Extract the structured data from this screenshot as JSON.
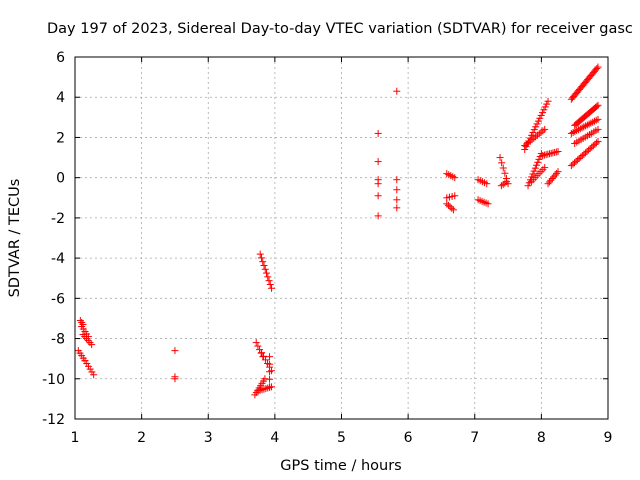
{
  "chart_data": {
    "type": "scatter",
    "title": "Day 197 of 2023, Sidereal Day-to-day VTEC variation (SDTVAR) for receiver gasc",
    "xlabel": "GPS time / hours",
    "ylabel": "SDTVAR / TECUs",
    "xlim": [
      1,
      9
    ],
    "ylim": [
      -12,
      6
    ],
    "xticks": [
      "1",
      "2",
      "3",
      "4",
      "5",
      "6",
      "7",
      "8",
      "9"
    ],
    "yticks": [
      "-12",
      "-10",
      "-8",
      "-6",
      "-4",
      "-2",
      "0",
      "2",
      "4",
      "6"
    ],
    "grid": true,
    "marker": "+",
    "color": "#ff0000",
    "segments": [
      {
        "x0": 1.08,
        "y0": -7.1,
        "x1": 1.12,
        "y1": -7.3,
        "n": 3
      },
      {
        "x0": 1.1,
        "y0": -7.4,
        "x1": 1.2,
        "y1": -7.9,
        "n": 5
      },
      {
        "x0": 1.12,
        "y0": -7.8,
        "x1": 1.25,
        "y1": -8.3,
        "n": 6
      },
      {
        "x0": 1.05,
        "y0": -8.6,
        "x1": 1.15,
        "y1": -9.1,
        "n": 5
      },
      {
        "x0": 1.15,
        "y0": -9.1,
        "x1": 1.28,
        "y1": -9.8,
        "n": 6
      },
      {
        "x0": 2.5,
        "y0": -8.6,
        "x1": 2.5,
        "y1": -8.6,
        "n": 1
      },
      {
        "x0": 2.5,
        "y0": -9.9,
        "x1": 2.5,
        "y1": -10.0,
        "n": 2
      },
      {
        "x0": 3.78,
        "y0": -3.8,
        "x1": 3.95,
        "y1": -5.5,
        "n": 10
      },
      {
        "x0": 3.72,
        "y0": -8.2,
        "x1": 3.82,
        "y1": -8.9,
        "n": 5
      },
      {
        "x0": 3.8,
        "y0": -8.7,
        "x1": 3.95,
        "y1": -9.6,
        "n": 6
      },
      {
        "x0": 3.92,
        "y0": -8.9,
        "x1": 3.92,
        "y1": -10.4,
        "n": 5
      },
      {
        "x0": 3.7,
        "y0": -10.8,
        "x1": 3.85,
        "y1": -10.0,
        "n": 8
      },
      {
        "x0": 3.75,
        "y0": -10.6,
        "x1": 3.95,
        "y1": -10.4,
        "n": 8
      },
      {
        "x0": 5.55,
        "y0": 2.2,
        "x1": 5.55,
        "y1": 2.2,
        "n": 1
      },
      {
        "x0": 5.55,
        "y0": 0.8,
        "x1": 5.55,
        "y1": 0.8,
        "n": 1
      },
      {
        "x0": 5.55,
        "y0": -0.1,
        "x1": 5.55,
        "y1": -0.3,
        "n": 2
      },
      {
        "x0": 5.55,
        "y0": -0.9,
        "x1": 5.55,
        "y1": -0.9,
        "n": 1
      },
      {
        "x0": 5.55,
        "y0": -1.9,
        "x1": 5.55,
        "y1": -1.9,
        "n": 1
      },
      {
        "x0": 5.83,
        "y0": 4.3,
        "x1": 5.83,
        "y1": 4.3,
        "n": 1
      },
      {
        "x0": 5.83,
        "y0": -0.1,
        "x1": 5.83,
        "y1": -0.1,
        "n": 1
      },
      {
        "x0": 5.83,
        "y0": -0.6,
        "x1": 5.83,
        "y1": -0.6,
        "n": 1
      },
      {
        "x0": 5.83,
        "y0": -1.1,
        "x1": 5.83,
        "y1": -1.1,
        "n": 1
      },
      {
        "x0": 5.83,
        "y0": -1.5,
        "x1": 5.83,
        "y1": -1.5,
        "n": 1
      },
      {
        "x0": 6.58,
        "y0": 0.2,
        "x1": 6.7,
        "y1": 0.0,
        "n": 5
      },
      {
        "x0": 6.58,
        "y0": -1.0,
        "x1": 6.7,
        "y1": -0.9,
        "n": 4
      },
      {
        "x0": 6.58,
        "y0": -1.3,
        "x1": 6.68,
        "y1": -1.6,
        "n": 5
      },
      {
        "x0": 7.05,
        "y0": -0.1,
        "x1": 7.18,
        "y1": -0.3,
        "n": 5
      },
      {
        "x0": 7.05,
        "y0": -1.1,
        "x1": 7.2,
        "y1": -1.3,
        "n": 6
      },
      {
        "x0": 7.38,
        "y0": 1.0,
        "x1": 7.5,
        "y1": -0.3,
        "n": 6
      },
      {
        "x0": 7.4,
        "y0": -0.4,
        "x1": 7.48,
        "y1": -0.2,
        "n": 4
      },
      {
        "x0": 7.75,
        "y0": 1.4,
        "x1": 8.1,
        "y1": 3.8,
        "n": 18
      },
      {
        "x0": 7.75,
        "y0": 1.6,
        "x1": 8.05,
        "y1": 2.4,
        "n": 12
      },
      {
        "x0": 7.8,
        "y0": -0.4,
        "x1": 8.0,
        "y1": 1.2,
        "n": 12
      },
      {
        "x0": 7.85,
        "y0": -0.2,
        "x1": 8.05,
        "y1": 0.5,
        "n": 8
      },
      {
        "x0": 8.02,
        "y0": 1.1,
        "x1": 8.25,
        "y1": 1.3,
        "n": 10
      },
      {
        "x0": 8.1,
        "y0": -0.3,
        "x1": 8.25,
        "y1": 0.3,
        "n": 8
      },
      {
        "x0": 8.45,
        "y0": 3.9,
        "x1": 8.85,
        "y1": 5.5,
        "n": 24
      },
      {
        "x0": 8.5,
        "y0": 2.6,
        "x1": 8.85,
        "y1": 3.6,
        "n": 20
      },
      {
        "x0": 8.45,
        "y0": 2.2,
        "x1": 8.85,
        "y1": 2.9,
        "n": 16
      },
      {
        "x0": 8.5,
        "y0": 1.7,
        "x1": 8.85,
        "y1": 2.4,
        "n": 12
      },
      {
        "x0": 8.45,
        "y0": 0.6,
        "x1": 8.85,
        "y1": 1.8,
        "n": 18
      }
    ]
  }
}
